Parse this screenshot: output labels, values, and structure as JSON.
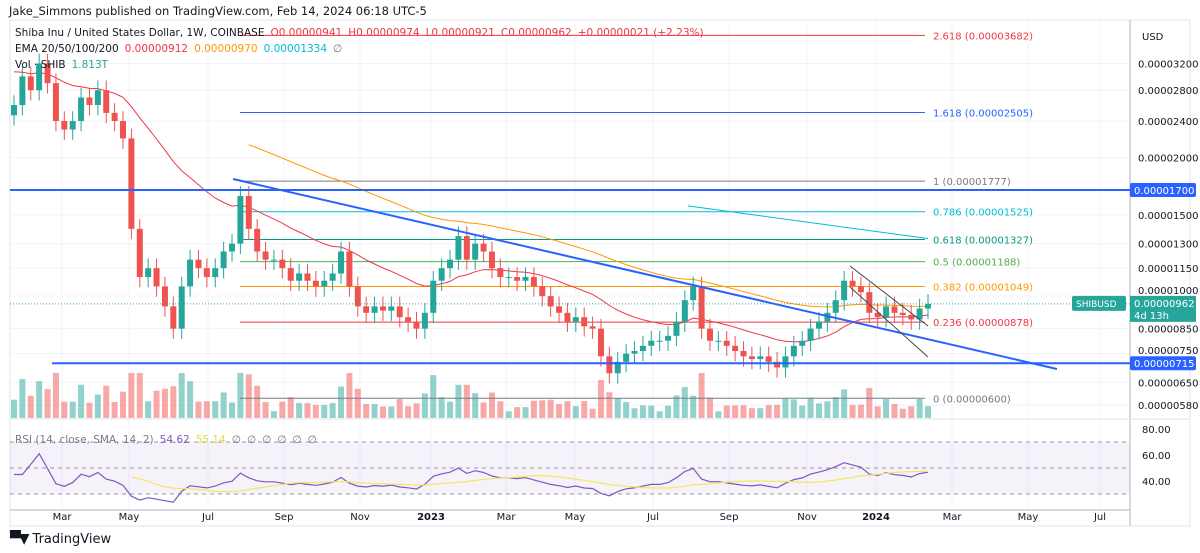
{
  "header": {
    "published": "Jake_Simmons published on TradingView.com, Feb 14, 2024 06:18 UTC-5",
    "symbol_line": "Shiba Inu / United States Dollar, 1W, COINBASE",
    "open": "O0.00000941",
    "high": "H0.00000974",
    "low": "L0.00000921",
    "close": "C0.00000962",
    "change": "+0.00000021 (+2.23%)",
    "ema_label": "EMA 20/50/100/200",
    "ema_values": [
      "0.00000912",
      "0.00000970",
      "0.00001334"
    ],
    "ema_hidden_icon": "∅",
    "vol_label": "Vol · SHIB",
    "vol_value": "1.813T"
  },
  "rsi": {
    "label": "RSI (14, close, SMA, 14, 2)",
    "value": "54.62",
    "sma_value": "55.14",
    "hidden_values": [
      "∅",
      "∅",
      "∅",
      "∅",
      "∅",
      "∅"
    ],
    "ticks": [
      "80.00",
      "60.00",
      "40.00"
    ]
  },
  "footer": {
    "brand": "TradingView",
    "logo": "TV"
  },
  "colors": {
    "up": "#26a69a",
    "down": "#ef5350",
    "ema20": "#f23645",
    "ema50": "#ff9800",
    "ema200": "#00bcd4",
    "rsi": "#7e57c2",
    "rsi_sma": "#f5e663",
    "hline": "#2962ff"
  },
  "chart_data": {
    "type": "candlestick",
    "symbol": "SHIBUSD",
    "interval": "1W",
    "currency": "USD",
    "y_scale": "log",
    "ylim": [
      5.7e-06,
      3.45e-05
    ],
    "price_ticks": [
      "0.00003200",
      "0.00002800",
      "0.00002400",
      "0.00002000",
      "0.00001500",
      "0.00001300",
      "0.00001150",
      "0.00001000",
      "0.00000850",
      "0.00000750",
      "0.00000650",
      "0.00000580"
    ],
    "time_ticks": [
      "Mar",
      "May",
      "Jul",
      "Sep",
      "Nov",
      "2023",
      "Mar",
      "May",
      "Jul",
      "Sep",
      "Nov",
      "2024",
      "Mar",
      "May",
      "Jul"
    ],
    "closes": [
      2.6e-05,
      3e-05,
      2.8e-05,
      3.2e-05,
      2.9e-05,
      2.4e-05,
      2.3e-05,
      2.4e-05,
      2.7e-05,
      2.6e-05,
      2.8e-05,
      2.5e-05,
      2.4e-05,
      2.2e-05,
      1.4e-05,
      1.1e-05,
      1.15e-05,
      1.05e-05,
      9.5e-06,
      8.5e-06,
      1.05e-05,
      1.2e-05,
      1.15e-05,
      1.1e-05,
      1.15e-05,
      1.25e-05,
      1.3e-05,
      1.65e-05,
      1.4e-05,
      1.25e-05,
      1.2e-05,
      1.2e-05,
      1.15e-05,
      1.08e-05,
      1.12e-05,
      1.08e-05,
      1.05e-05,
      1.08e-05,
      1.12e-05,
      1.25e-05,
      1.05e-05,
      9.5e-06,
      9.2e-06,
      9.5e-06,
      9.3e-06,
      9.5e-06,
      9e-06,
      8.8e-06,
      8.5e-06,
      9.2e-06,
      1.08e-05,
      1.15e-05,
      1.2e-05,
      1.35e-05,
      1.2e-05,
      1.3e-05,
      1.25e-05,
      1.15e-05,
      1.1e-05,
      1.1e-05,
      1.08e-05,
      1.1e-05,
      1.05e-05,
      1e-05,
      9.5e-06,
      9.2e-06,
      8.8e-06,
      9e-06,
      8.6e-06,
      8.5e-06,
      7.4e-06,
      6.8e-06,
      7.2e-06,
      7.5e-06,
      7.6e-06,
      7.8e-06,
      8e-06,
      8e-06,
      8.2e-06,
      8.8e-06,
      9.8e-06,
      1.05e-05,
      8.5e-06,
      8e-06,
      8e-06,
      7.8e-06,
      7.6e-06,
      7.4e-06,
      7.3e-06,
      7.4e-06,
      7.2e-06,
      7e-06,
      7.4e-06,
      7.8e-06,
      8e-06,
      8.5e-06,
      8.8e-06,
      9.2e-06,
      9.8e-06,
      1.08e-05,
      1.05e-05,
      1.02e-05,
      9.2e-06,
      9e-06,
      9.5e-06,
      9.2e-06,
      9.1e-06,
      8.9e-06,
      9.4e-06,
      9.62e-06
    ],
    "current_price": {
      "label": "SHIBUSD",
      "value": "0.00000962",
      "countdown": "4d 13h"
    },
    "horizontal_levels": [
      {
        "price": 1.7e-05,
        "label": "0.00001700"
      },
      {
        "price": 7.15e-06,
        "label": "0.00000715"
      }
    ],
    "ema200_segment": [
      1.57e-05,
      1.334e-05
    ],
    "fibonacci": [
      {
        "level": "2.618",
        "price": 3.682e-05,
        "label": "2.618 (0.00003682)",
        "color": "#f23645"
      },
      {
        "level": "1.618",
        "price": 2.505e-05,
        "label": "1.618 (0.00002505)",
        "color": "#2962ff"
      },
      {
        "level": "1",
        "price": 1.777e-05,
        "label": "1 (0.00001777)",
        "color": "#787b86"
      },
      {
        "level": "0.786",
        "price": 1.525e-05,
        "label": "0.786 (0.00001525)",
        "color": "#00bcd4"
      },
      {
        "level": "0.618",
        "price": 1.327e-05,
        "label": "0.618 (0.00001327)",
        "color": "#089981"
      },
      {
        "level": "0.5",
        "price": 1.188e-05,
        "label": "0.5 (0.00001188)",
        "color": "#4caf50"
      },
      {
        "level": "0.382",
        "price": 1.049e-05,
        "label": "0.382 (0.00001049)",
        "color": "#ff9800"
      },
      {
        "level": "0.236",
        "price": 8.78e-06,
        "label": "0.236 (0.00000878)",
        "color": "#f23645"
      },
      {
        "level": "0",
        "price": 6e-06,
        "label": "0 (0.00000600)",
        "color": "#787b86"
      }
    ]
  }
}
